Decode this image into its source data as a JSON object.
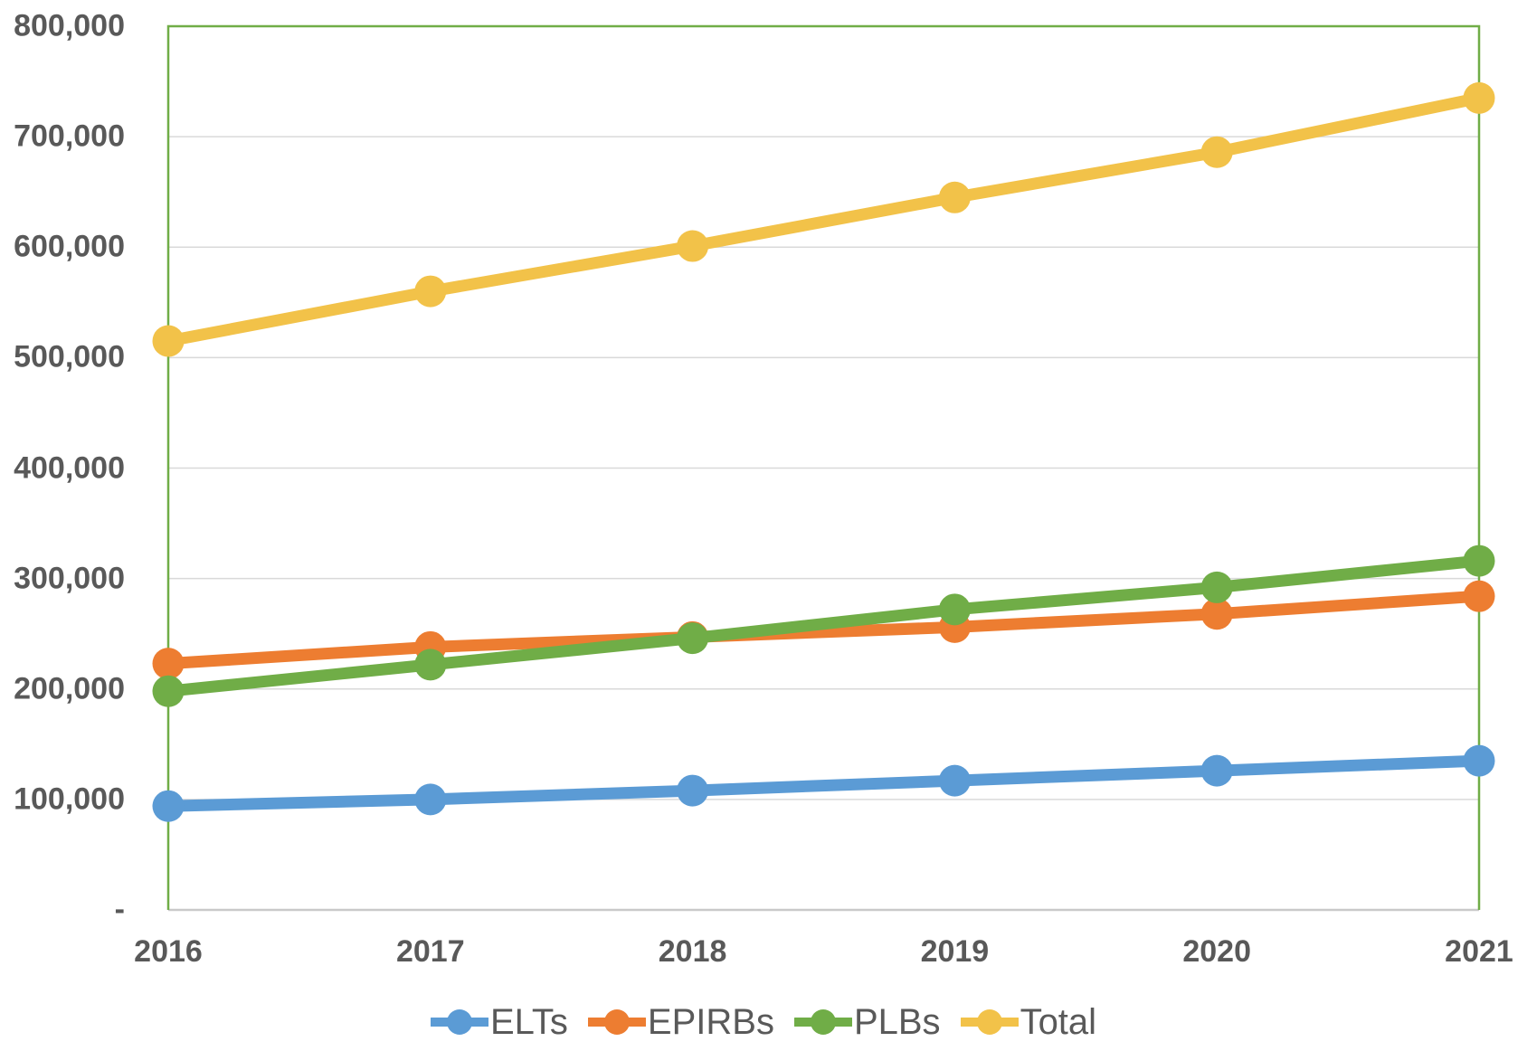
{
  "chart_data": {
    "type": "line",
    "title": "",
    "x_categories": [
      "2016",
      "2017",
      "2018",
      "2019",
      "2020",
      "2021"
    ],
    "series": [
      {
        "name": "ELTs",
        "color": "#5B9BD5",
        "values": [
          94000,
          100000,
          108000,
          117000,
          126000,
          135000
        ]
      },
      {
        "name": "EPIRBs",
        "color": "#ED7D31",
        "values": [
          223000,
          238000,
          247000,
          256000,
          268000,
          284000
        ]
      },
      {
        "name": "PLBs",
        "color": "#70AD47",
        "values": [
          198000,
          222000,
          246000,
          272000,
          292000,
          316000
        ]
      },
      {
        "name": "Total",
        "color": "#F2C249",
        "values": [
          515000,
          560000,
          601000,
          645000,
          686000,
          735000
        ]
      }
    ],
    "ylim": [
      0,
      800000
    ],
    "yticks": [
      {
        "value": 0,
        "label": "-"
      },
      {
        "value": 100000,
        "label": "100,000"
      },
      {
        "value": 200000,
        "label": "200,000"
      },
      {
        "value": 300000,
        "label": "300,000"
      },
      {
        "value": 400000,
        "label": "400,000"
      },
      {
        "value": 500000,
        "label": "500,000"
      },
      {
        "value": 600000,
        "label": "600,000"
      },
      {
        "value": 700000,
        "label": "700,000"
      },
      {
        "value": 800000,
        "label": "800,000"
      }
    ],
    "grid": "horizontal",
    "legend_position": "bottom",
    "line_width": 13,
    "marker_radius": 17.5,
    "colors": {
      "axis_text": "#595959",
      "gridline": "#D9D9D9",
      "axis_line": "#C9C9C9",
      "plot_border": "#70AD47",
      "background": "#FFFFFF"
    }
  }
}
